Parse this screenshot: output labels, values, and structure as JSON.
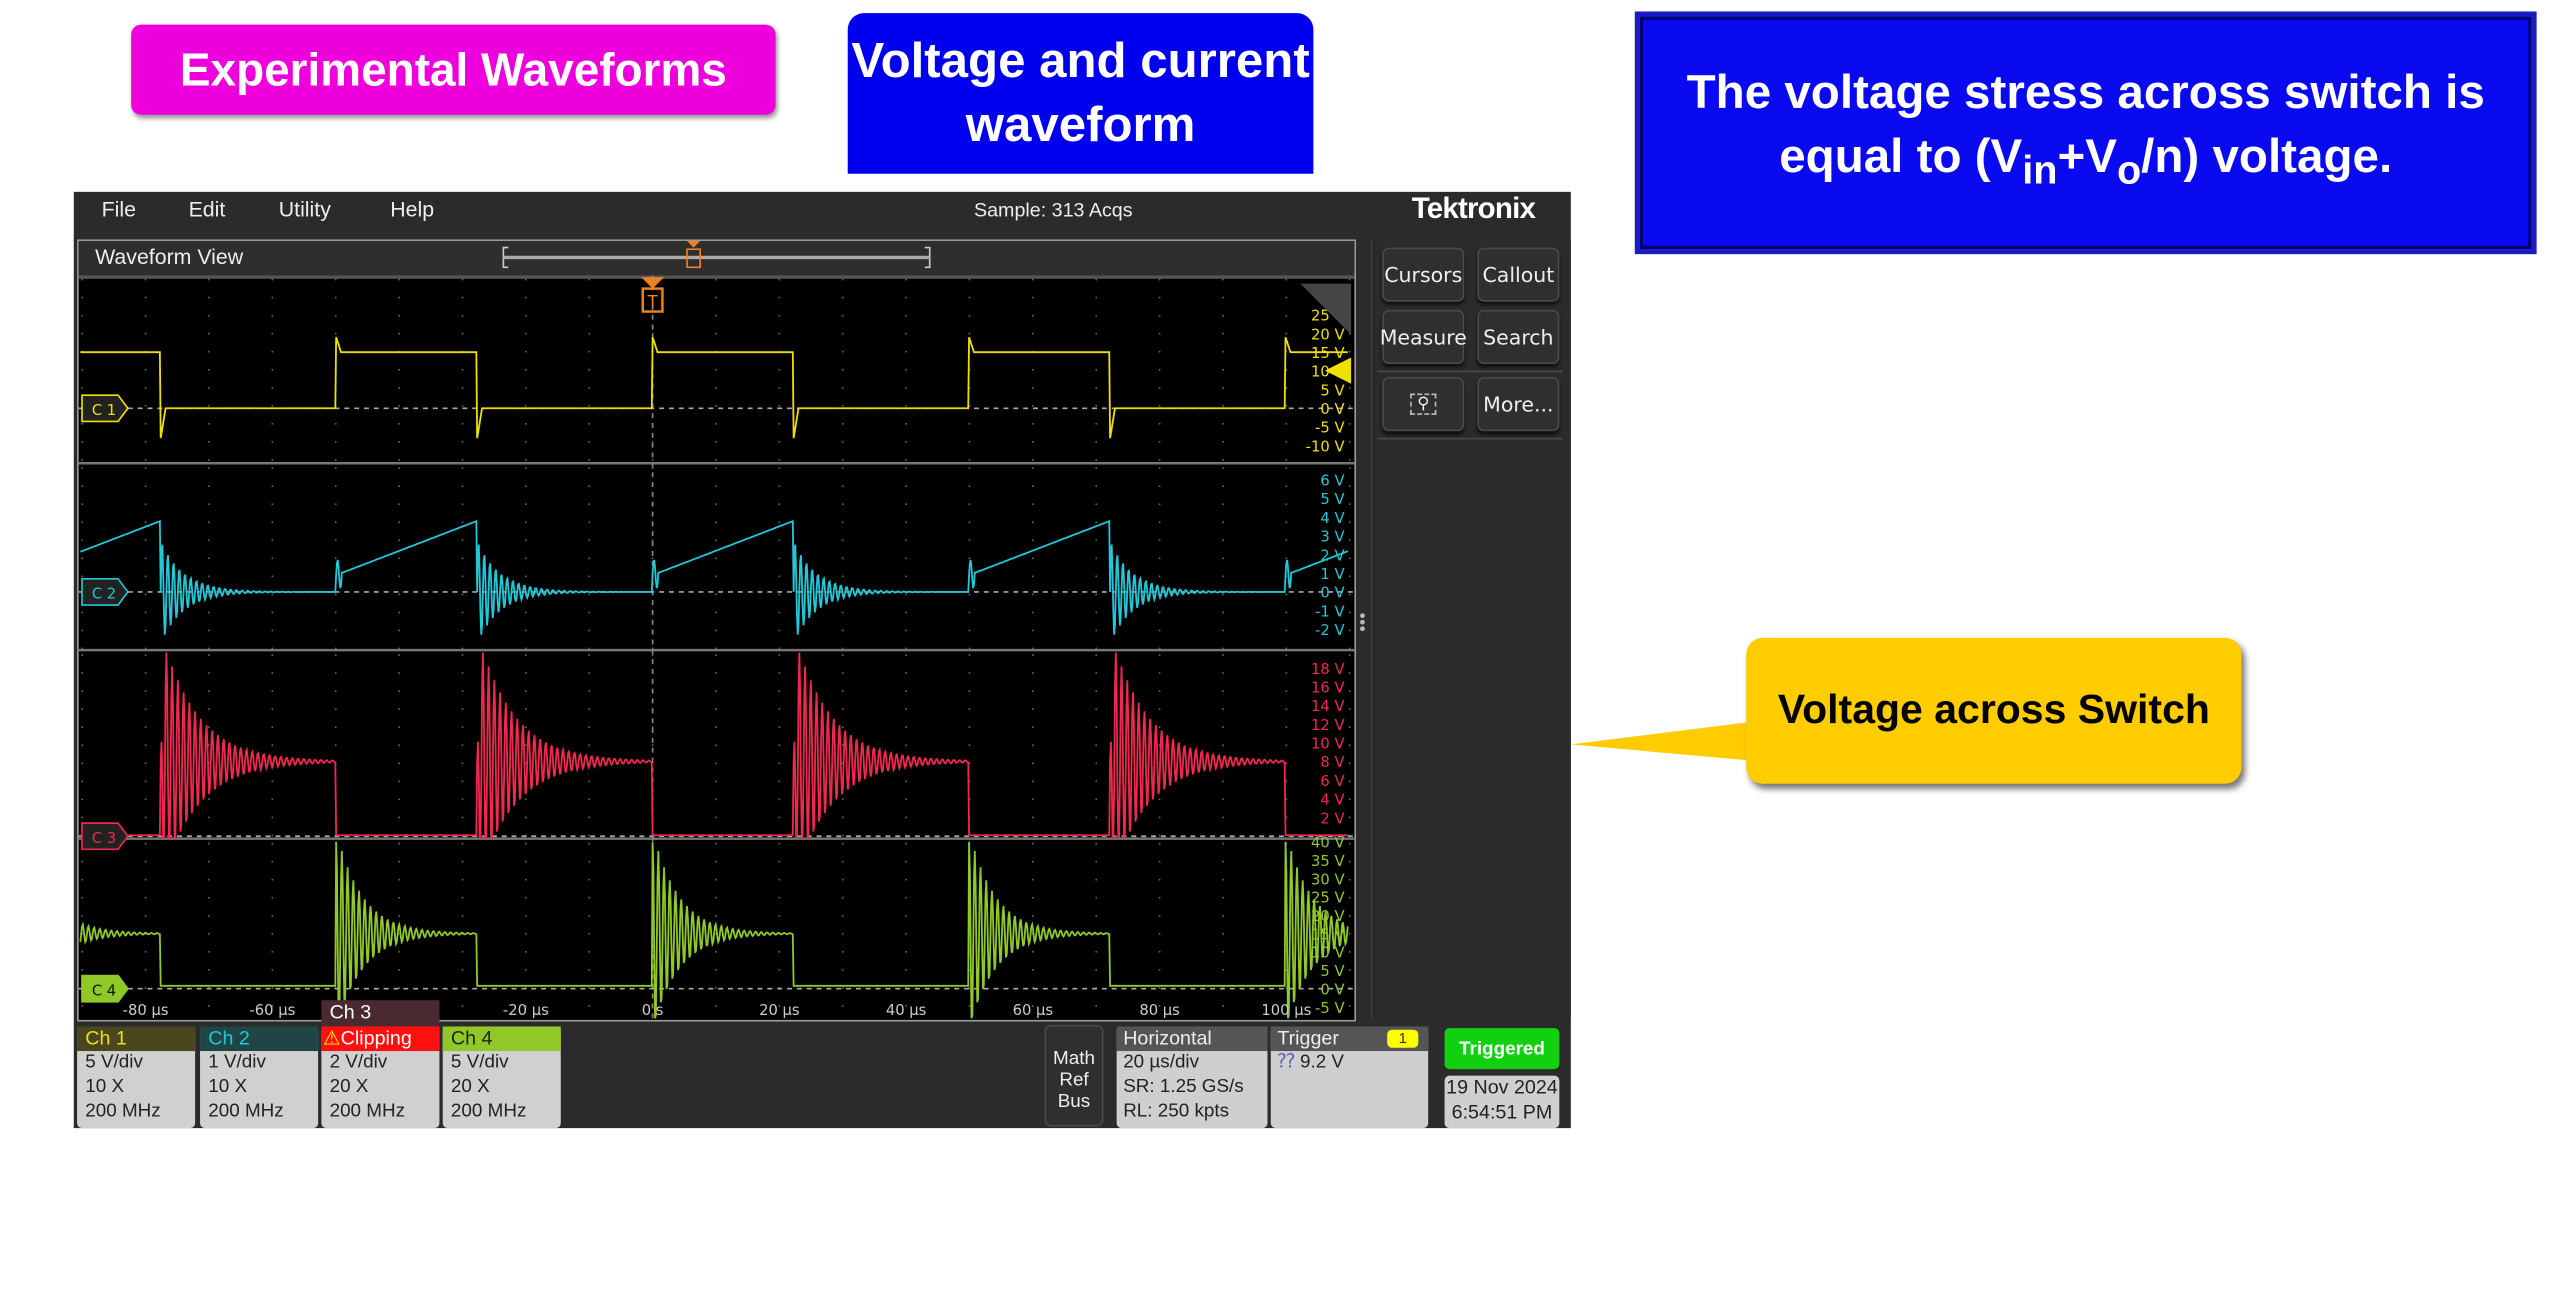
{
  "slide": {
    "title_experimental": "Experimental Waveforms",
    "title_vc": "Voltage and current waveform",
    "stress_note_line1": "The voltage stress across switch is",
    "stress_note_line2_prefix": "equal to (V",
    "stress_note_sub_in": "in",
    "stress_note_plus": "+V",
    "stress_note_sub_o": "o",
    "stress_note_suffix": "/n)  voltage.",
    "callout": "Voltage across Switch",
    "colors": {
      "magenta": "#ee00dd",
      "blue": "#0000ee",
      "callout": "#ffcc00"
    }
  },
  "scope": {
    "menu": [
      "File",
      "Edit",
      "Utility",
      "Help"
    ],
    "status": "Sample: 313 Acqs",
    "logo": "Tektronix",
    "view_title": "Waveform View",
    "trigger_marker": "T",
    "side_buttons": [
      "Cursors",
      "Callout",
      "Measure",
      "Search",
      "More..."
    ],
    "side_icons": [
      "zoom-select-icon"
    ],
    "channels": [
      {
        "id": "C 1",
        "name": "Ch 1",
        "color": "#f0e000",
        "scale": "5 V/div",
        "probe": "10 X",
        "bw": "200 MHz",
        "ticks": [
          "25 V",
          "20 V",
          "15 V",
          "10 V",
          "5 V",
          "0 V",
          "-5 V",
          "-10 V"
        ]
      },
      {
        "id": "C 2",
        "name": "Ch 2",
        "color": "#20c8d8",
        "scale": "1 V/div",
        "probe": "10 X",
        "bw": "200 MHz",
        "ticks": [
          "6 V",
          "5 V",
          "4 V",
          "3 V",
          "2 V",
          "1 V",
          "0 V",
          "-1 V",
          "-2 V"
        ]
      },
      {
        "id": "C 3",
        "name": "Ch 3",
        "color": "#f02850",
        "scale": "2 V/div",
        "probe": "20 X",
        "bw": "200 MHz",
        "status": "Clipping",
        "ticks": [
          "18 V",
          "16 V",
          "14 V",
          "12 V",
          "10 V",
          "8 V",
          "6 V",
          "4 V",
          "2 V"
        ]
      },
      {
        "id": "C 4",
        "name": "Ch 4",
        "color": "#90c828",
        "scale": "5 V/div",
        "probe": "20 X",
        "bw": "200 MHz",
        "ticks": [
          "40 V",
          "35 V",
          "30 V",
          "25 V",
          "20 V",
          "15 V",
          "10 V",
          "5 V",
          "0 V",
          "-5 V"
        ]
      }
    ],
    "time_ticks": [
      "-80 µs",
      "-60 µs",
      "-40 µs",
      "-20 µs",
      "0 s",
      "20 µs",
      "40 µs",
      "60 µs",
      "80 µs",
      "100 µs"
    ],
    "math_ref_bus": [
      "Math",
      "Ref",
      "Bus"
    ],
    "horizontal": {
      "title": "Horizontal",
      "scale": "20 µs/div",
      "sr": "SR: 1.25 GS/s",
      "rl": "RL: 250 kpts"
    },
    "trigger": {
      "title": "Trigger",
      "source": "1",
      "level": "9.2 V"
    },
    "acq_state": "Triggered",
    "date": "19 Nov 2024",
    "time": "6:54:51 PM"
  }
}
